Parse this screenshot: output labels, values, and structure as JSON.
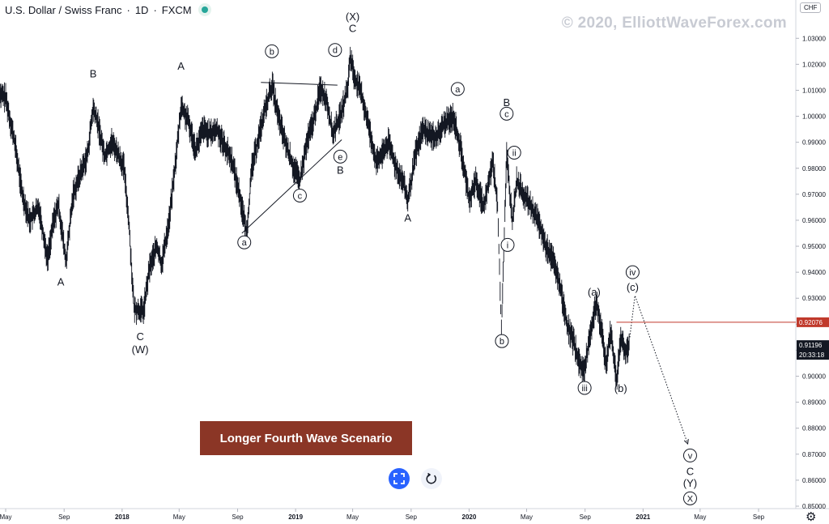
{
  "header": {
    "symbol": "U.S. Dollar / Swiss Franc",
    "sep1": "·",
    "interval": "1D",
    "sep2": "·",
    "exchange": "FXCM"
  },
  "watermark": "© 2020, ElliottWaveForex.com",
  "currency_badge": "CHF",
  "scenario_label": "Longer Fourth Wave Scenario",
  "chart_data": {
    "type": "line",
    "title": "",
    "ylim": [
      0.8447,
      1.0385
    ],
    "y_ticks": [
      "1.03000",
      "1.02000",
      "1.01000",
      "1.00000",
      "0.99000",
      "0.98000",
      "0.97000",
      "0.96000",
      "0.95000",
      "0.94000",
      "0.93000",
      "0.92000",
      "0.91000",
      "0.90000",
      "0.89000",
      "0.88000",
      "0.87000",
      "0.86000",
      "0.85000"
    ],
    "x_ticks": [
      "May",
      "Sep",
      "2018",
      "May",
      "Sep",
      "2019",
      "May",
      "Sep",
      "2020",
      "May",
      "Sep",
      "2021",
      "May",
      "Sep"
    ],
    "x_tick_dates": [
      "2017-05-01",
      "2017-09-01",
      "2018-01-01",
      "2018-05-01",
      "2018-09-01",
      "2019-01-01",
      "2019-05-01",
      "2019-09-01",
      "2020-01-01",
      "2020-05-01",
      "2020-09-01",
      "2021-01-01",
      "2021-05-01",
      "2021-09-01"
    ],
    "price_line": {
      "value": 0.92076,
      "label": "0.92076",
      "color": "#c0392b"
    },
    "last_price": {
      "value": 0.91196,
      "label": "0.91196",
      "countdown": "20:33:18"
    },
    "series": [
      {
        "values": [
          [
            "2017-04-15",
            1.009
          ],
          [
            "2017-05-01",
            1.007
          ],
          [
            "2017-05-20",
            0.99
          ],
          [
            "2017-06-05",
            0.97
          ],
          [
            "2017-06-20",
            0.96
          ],
          [
            "2017-07-10",
            0.965
          ],
          [
            "2017-07-28",
            0.945
          ],
          [
            "2017-08-10",
            0.96
          ],
          [
            "2017-08-20",
            0.966
          ],
          [
            "2017-09-05",
            0.944
          ],
          [
            "2017-09-20",
            0.97
          ],
          [
            "2017-10-05",
            0.978
          ],
          [
            "2017-10-20",
            0.985
          ],
          [
            "2017-11-01",
            1.003
          ],
          [
            "2017-11-10",
            0.998
          ],
          [
            "2017-11-25",
            0.985
          ],
          [
            "2017-12-10",
            0.99
          ],
          [
            "2017-12-20",
            0.987
          ],
          [
            "2018-01-05",
            0.98
          ],
          [
            "2018-01-15",
            0.96
          ],
          [
            "2018-01-26",
            0.926
          ],
          [
            "2018-02-15",
            0.925
          ],
          [
            "2018-02-28",
            0.942
          ],
          [
            "2018-03-15",
            0.95
          ],
          [
            "2018-03-25",
            0.943
          ],
          [
            "2018-04-10",
            0.96
          ],
          [
            "2018-04-25",
            0.985
          ],
          [
            "2018-05-05",
            1.004
          ],
          [
            "2018-05-20",
            0.998
          ],
          [
            "2018-06-05",
            0.987
          ],
          [
            "2018-06-20",
            0.995
          ],
          [
            "2018-07-05",
            0.993
          ],
          [
            "2018-07-20",
            0.995
          ],
          [
            "2018-08-01",
            0.99
          ],
          [
            "2018-08-20",
            0.983
          ],
          [
            "2018-09-05",
            0.97
          ],
          [
            "2018-09-20",
            0.955
          ],
          [
            "2018-10-01",
            0.98
          ],
          [
            "2018-10-15",
            0.992
          ],
          [
            "2018-11-01",
            1.005
          ],
          [
            "2018-11-13",
            1.012
          ],
          [
            "2018-11-25",
            1.0
          ],
          [
            "2018-12-10",
            0.99
          ],
          [
            "2018-12-28",
            0.98
          ],
          [
            "2019-01-10",
            0.975
          ],
          [
            "2019-01-25",
            0.99
          ],
          [
            "2019-02-10",
            1.0
          ],
          [
            "2019-02-22",
            1.011
          ],
          [
            "2019-03-08",
            1.006
          ],
          [
            "2019-03-20",
            0.993
          ],
          [
            "2019-04-05",
            1.0
          ],
          [
            "2019-04-20",
            1.01
          ],
          [
            "2019-04-26",
            1.023
          ],
          [
            "2019-05-05",
            1.015
          ],
          [
            "2019-05-20",
            1.008
          ],
          [
            "2019-06-05",
            0.995
          ],
          [
            "2019-06-20",
            0.982
          ],
          [
            "2019-07-01",
            0.985
          ],
          [
            "2019-07-15",
            0.99
          ],
          [
            "2019-08-01",
            0.98
          ],
          [
            "2019-08-15",
            0.975
          ],
          [
            "2019-08-25",
            0.967
          ],
          [
            "2019-09-10",
            0.985
          ],
          [
            "2019-09-25",
            0.995
          ],
          [
            "2019-10-10",
            0.993
          ],
          [
            "2019-10-25",
            0.992
          ],
          [
            "2019-11-10",
            0.997
          ],
          [
            "2019-11-29",
            1.0
          ],
          [
            "2019-12-15",
            0.987
          ],
          [
            "2020-01-01",
            0.968
          ],
          [
            "2020-01-15",
            0.975
          ],
          [
            "2020-02-01",
            0.965
          ],
          [
            "2020-02-20",
            0.983
          ],
          [
            "2020-03-01",
            0.965
          ],
          [
            "2020-03-09",
            0.918
          ],
          [
            "2020-03-20",
            0.985
          ],
          [
            "2020-04-01",
            0.96
          ],
          [
            "2020-04-10",
            0.975
          ],
          [
            "2020-04-25",
            0.97
          ],
          [
            "2020-05-10",
            0.965
          ],
          [
            "2020-05-25",
            0.96
          ],
          [
            "2020-06-10",
            0.95
          ],
          [
            "2020-06-25",
            0.945
          ],
          [
            "2020-07-10",
            0.935
          ],
          [
            "2020-07-25",
            0.92
          ],
          [
            "2020-08-10",
            0.912
          ],
          [
            "2020-08-20",
            0.905
          ],
          [
            "2020-08-31",
            0.902
          ],
          [
            "2020-09-10",
            0.915
          ],
          [
            "2020-09-25",
            0.929
          ],
          [
            "2020-10-05",
            0.918
          ],
          [
            "2020-10-15",
            0.905
          ],
          [
            "2020-10-25",
            0.917
          ],
          [
            "2020-11-01",
            0.907
          ],
          [
            "2020-11-06",
            0.898
          ],
          [
            "2020-11-15",
            0.915
          ],
          [
            "2020-11-25",
            0.91
          ],
          [
            "2020-12-04",
            0.912
          ]
        ]
      }
    ],
    "annotations": [
      {
        "date": "2017-08-25",
        "value": 0.9365,
        "text": "A",
        "circled": false
      },
      {
        "date": "2017-11-01",
        "value": 1.0165,
        "text": "B",
        "circled": false
      },
      {
        "date": "2018-02-08",
        "value": 0.9155,
        "text": "C",
        "circled": false
      },
      {
        "date": "2018-02-08",
        "value": 0.9105,
        "text": "(W)",
        "circled": false
      },
      {
        "date": "2018-05-05",
        "value": 1.0195,
        "text": "A",
        "circled": false
      },
      {
        "date": "2018-09-15",
        "value": 0.9515,
        "text": "a",
        "circled": true
      },
      {
        "date": "2018-11-12",
        "value": 1.025,
        "text": "b",
        "circled": true
      },
      {
        "date": "2019-01-10",
        "value": 0.9695,
        "text": "c",
        "circled": true
      },
      {
        "date": "2019-03-25",
        "value": 1.0255,
        "text": "d",
        "circled": true
      },
      {
        "date": "2019-04-05",
        "value": 0.9845,
        "text": "e",
        "circled": true
      },
      {
        "date": "2019-04-05",
        "value": 0.9795,
        "text": "B",
        "circled": false
      },
      {
        "date": "2019-05-01",
        "value": 1.0385,
        "text": "(X)",
        "circled": false
      },
      {
        "date": "2019-05-01",
        "value": 1.034,
        "text": "C",
        "circled": false
      },
      {
        "date": "2019-08-25",
        "value": 0.961,
        "text": "A",
        "circled": false
      },
      {
        "date": "2019-12-08",
        "value": 1.0105,
        "text": "a",
        "circled": true
      },
      {
        "date": "2020-03-20",
        "value": 1.0055,
        "text": "B",
        "circled": false
      },
      {
        "date": "2020-03-20",
        "value": 1.001,
        "text": "c",
        "circled": true
      },
      {
        "date": "2020-03-10",
        "value": 0.9135,
        "text": "b",
        "circled": true
      },
      {
        "date": "2020-04-05",
        "value": 0.986,
        "text": "ii",
        "circled": true
      },
      {
        "date": "2020-03-22",
        "value": 0.9505,
        "text": "i",
        "circled": true
      },
      {
        "date": "2020-08-31",
        "value": 0.8955,
        "text": "iii",
        "circled": true
      },
      {
        "date": "2020-09-20",
        "value": 0.9325,
        "text": "(a)",
        "circled": false
      },
      {
        "date": "2020-11-15",
        "value": 0.8955,
        "text": "(b)",
        "circled": false
      },
      {
        "date": "2020-12-10",
        "value": 0.94,
        "text": "iv",
        "circled": true
      },
      {
        "date": "2020-12-10",
        "value": 0.9345,
        "text": "(c)",
        "circled": false
      },
      {
        "date": "2021-04-10",
        "value": 0.8695,
        "text": "v",
        "circled": true
      },
      {
        "date": "2021-04-10",
        "value": 0.8635,
        "text": "C",
        "circled": false
      },
      {
        "date": "2021-04-10",
        "value": 0.859,
        "text": "(Y)",
        "circled": false
      },
      {
        "date": "2021-04-10",
        "value": 0.853,
        "text": "X",
        "circled": true
      }
    ],
    "trendlines": [
      {
        "points": [
          [
            "2018-10-20",
            1.013
          ],
          [
            "2019-03-30",
            1.012
          ]
        ],
        "style": "solid"
      },
      {
        "points": [
          [
            "2018-09-10",
            0.955
          ],
          [
            "2019-04-08",
            0.991
          ]
        ],
        "style": "solid"
      },
      {
        "points": [
          [
            "2020-12-04",
            0.915
          ],
          [
            "2020-12-15",
            0.931
          ],
          [
            "2021-04-05",
            0.874
          ]
        ],
        "style": "dotted"
      }
    ],
    "grid": false,
    "legend": "none"
  }
}
